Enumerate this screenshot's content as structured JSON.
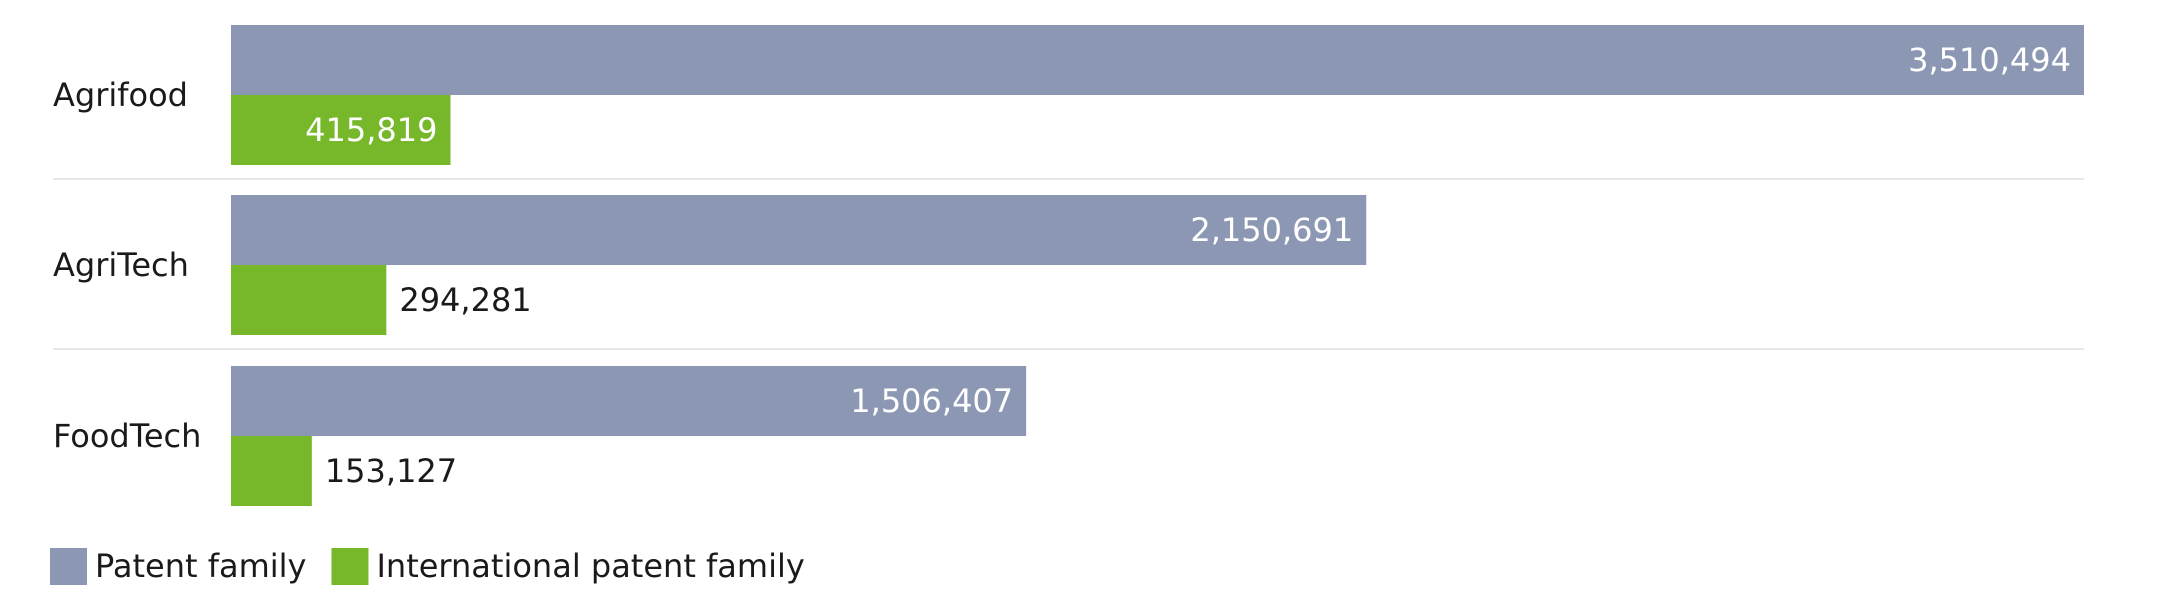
{
  "chart_data": {
    "type": "bar",
    "orientation": "horizontal",
    "categories": [
      "Agrifood",
      "AgriTech",
      "FoodTech"
    ],
    "series": [
      {
        "name": "Patent family",
        "values": [
          3510494,
          2150691,
          1506407
        ],
        "labels": [
          "3,510,494",
          "2,150,691",
          "1,506,407"
        ],
        "color": "#8c98b3"
      },
      {
        "name": "International patent family",
        "values": [
          415819,
          294281,
          153127
        ],
        "labels": [
          "415,819",
          "294,281",
          "153,127"
        ],
        "color": "#76b82a"
      }
    ],
    "xlim": [
      0,
      3510494
    ],
    "grid": false,
    "legend_position": "bottom-left",
    "title": "",
    "xlabel": "",
    "ylabel": ""
  }
}
